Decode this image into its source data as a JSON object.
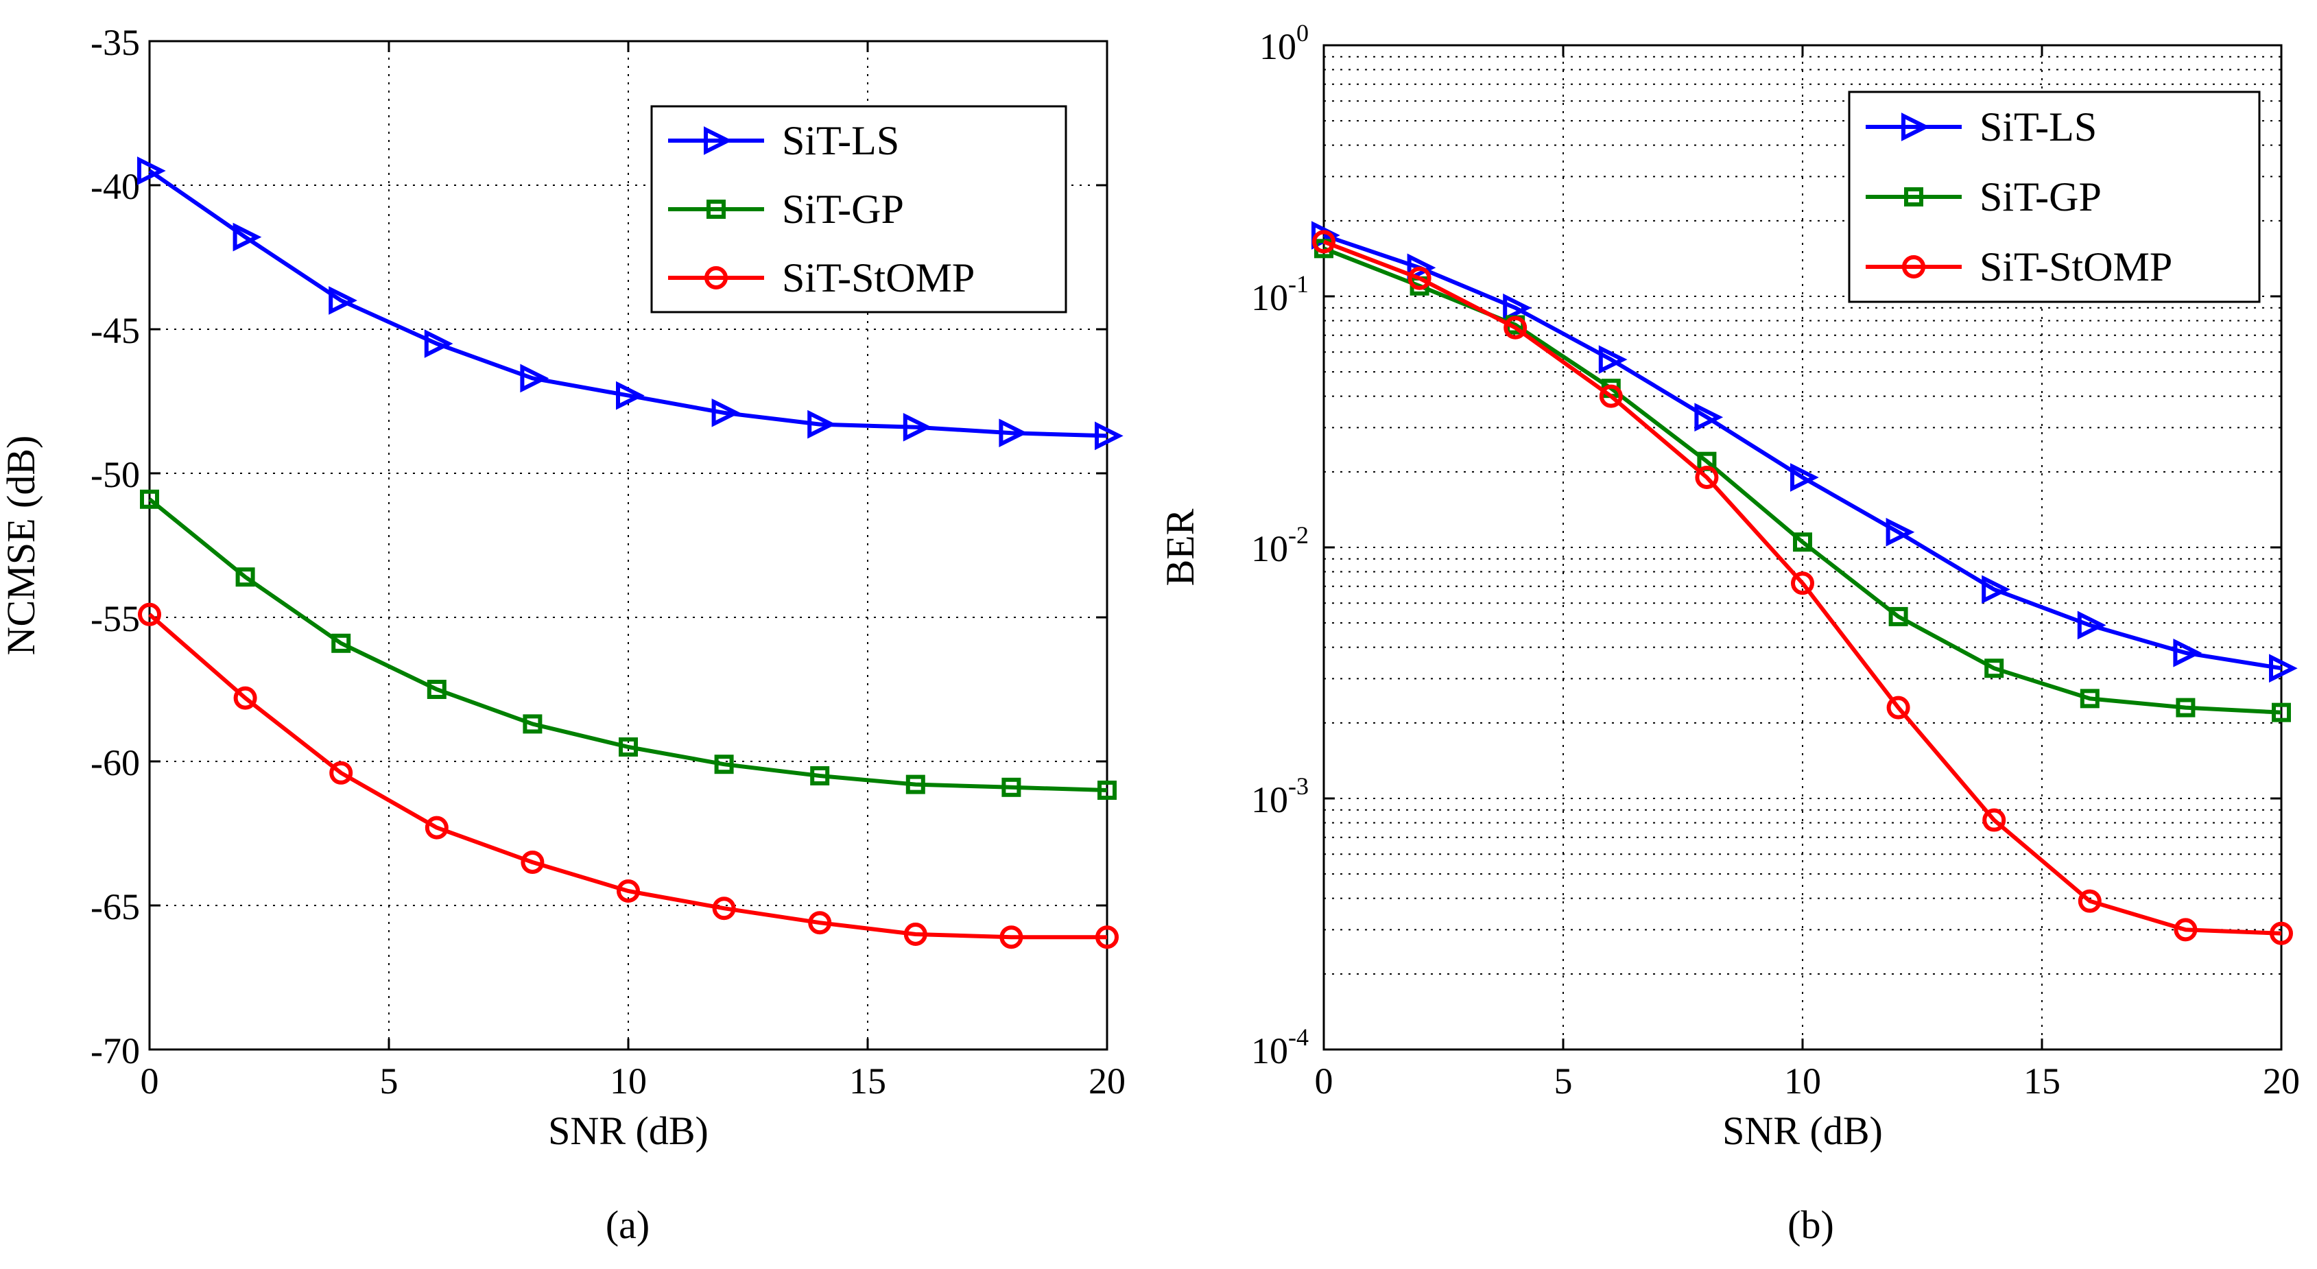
{
  "figure": {
    "captions": [
      "(a)",
      "(b)"
    ]
  },
  "chart_data": [
    {
      "type": "line",
      "title": "",
      "xlabel": "SNR (dB)",
      "ylabel": "NCMSE (dB)",
      "xlim": [
        0,
        20
      ],
      "ylim": [
        -70,
        -35
      ],
      "xticks": [
        "0",
        "5",
        "10",
        "15",
        "20"
      ],
      "yticks": [
        "-35",
        "-40",
        "-45",
        "-50",
        "-55",
        "-60",
        "-65",
        "-70"
      ],
      "grid": true,
      "legend_position": "top-right",
      "x": [
        0,
        2,
        4,
        6,
        8,
        10,
        12,
        14,
        16,
        18,
        20
      ],
      "series": [
        {
          "name": "SiT-LS",
          "color": "#0000ff",
          "marker": "triangle-right",
          "values": [
            -39.5,
            -41.8,
            -44.0,
            -45.5,
            -46.7,
            -47.3,
            -47.9,
            -48.3,
            -48.4,
            -48.6,
            -48.7
          ]
        },
        {
          "name": "SiT-GP",
          "color": "#008000",
          "marker": "square",
          "values": [
            -50.9,
            -53.6,
            -55.9,
            -57.5,
            -58.7,
            -59.5,
            -60.1,
            -60.5,
            -60.8,
            -60.9,
            -61.0
          ]
        },
        {
          "name": "SiT-StOMP",
          "color": "#ff0000",
          "marker": "circle",
          "values": [
            -54.9,
            -57.8,
            -60.4,
            -62.3,
            -63.5,
            -64.5,
            -65.1,
            -65.6,
            -66.0,
            -66.1,
            -66.1
          ]
        }
      ]
    },
    {
      "type": "line",
      "title": "",
      "xlabel": "SNR (dB)",
      "ylabel": "BER",
      "yscale": "log",
      "xlim": [
        0,
        20
      ],
      "ylim": [
        0.0001,
        1
      ],
      "xticks": [
        "0",
        "5",
        "10",
        "15",
        "20"
      ],
      "yticks": [
        {
          "base": "10",
          "exp": "0"
        },
        {
          "base": "10",
          "exp": "-1"
        },
        {
          "base": "10",
          "exp": "-2"
        },
        {
          "base": "10",
          "exp": "-3"
        },
        {
          "base": "10",
          "exp": "-4"
        }
      ],
      "grid": true,
      "legend_position": "top-right",
      "x": [
        0,
        2,
        4,
        6,
        8,
        10,
        12,
        14,
        16,
        18,
        20
      ],
      "series": [
        {
          "name": "SiT-LS",
          "color": "#0000ff",
          "marker": "triangle-right",
          "values": [
            0.175,
            0.13,
            0.09,
            0.056,
            0.033,
            0.019,
            0.0115,
            0.0068,
            0.0049,
            0.0038,
            0.0033
          ]
        },
        {
          "name": "SiT-GP",
          "color": "#008000",
          "marker": "square",
          "values": [
            0.155,
            0.11,
            0.077,
            0.043,
            0.022,
            0.0105,
            0.0053,
            0.0033,
            0.0025,
            0.0023,
            0.0022
          ]
        },
        {
          "name": "SiT-StOMP",
          "color": "#ff0000",
          "marker": "circle",
          "values": [
            0.165,
            0.118,
            0.075,
            0.04,
            0.019,
            0.0072,
            0.0023,
            0.00082,
            0.00039,
            0.0003,
            0.00029
          ]
        }
      ]
    }
  ]
}
